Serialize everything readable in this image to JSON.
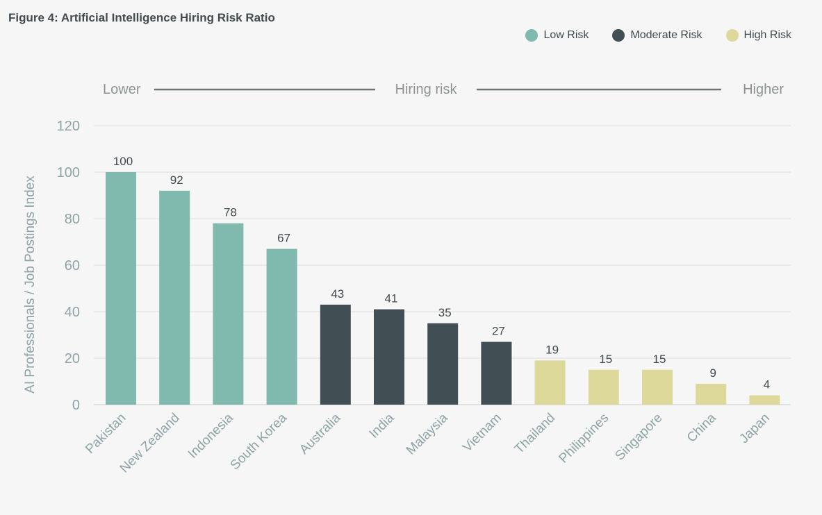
{
  "header": {
    "title": "Figure 4: Artificial Intelligence Hiring Risk Ratio"
  },
  "legend": [
    {
      "label": "Low Risk",
      "color": "#80b9ad"
    },
    {
      "label": "Moderate Risk",
      "color": "#414f54"
    },
    {
      "label": "High Risk",
      "color": "#dcd99a"
    }
  ],
  "scale": {
    "lower": "Lower",
    "middle": "Hiring risk",
    "higher": "Higher"
  },
  "chart_data": {
    "type": "bar",
    "title": "Figure 4: Artificial Intelligence Hiring Risk Ratio",
    "xlabel": "",
    "ylabel": "AI Professionals / Job Postings Index",
    "ylim": [
      0,
      120
    ],
    "yticks": [
      0,
      20,
      40,
      60,
      80,
      100,
      120
    ],
    "grid": true,
    "legend_position": "top-right",
    "categories": [
      "Pakistan",
      "New Zealand",
      "Indonesia",
      "South Korea",
      "Australia",
      "India",
      "Malaysia",
      "Vietnam",
      "Thailand",
      "Philippines",
      "Singapore",
      "China",
      "Japan"
    ],
    "values": [
      100,
      92,
      78,
      67,
      43,
      41,
      35,
      27,
      19,
      15,
      15,
      9,
      4
    ],
    "risk_group": [
      "Low Risk",
      "Low Risk",
      "Low Risk",
      "Low Risk",
      "Moderate Risk",
      "Moderate Risk",
      "Moderate Risk",
      "Moderate Risk",
      "High Risk",
      "High Risk",
      "High Risk",
      "High Risk",
      "High Risk"
    ]
  }
}
